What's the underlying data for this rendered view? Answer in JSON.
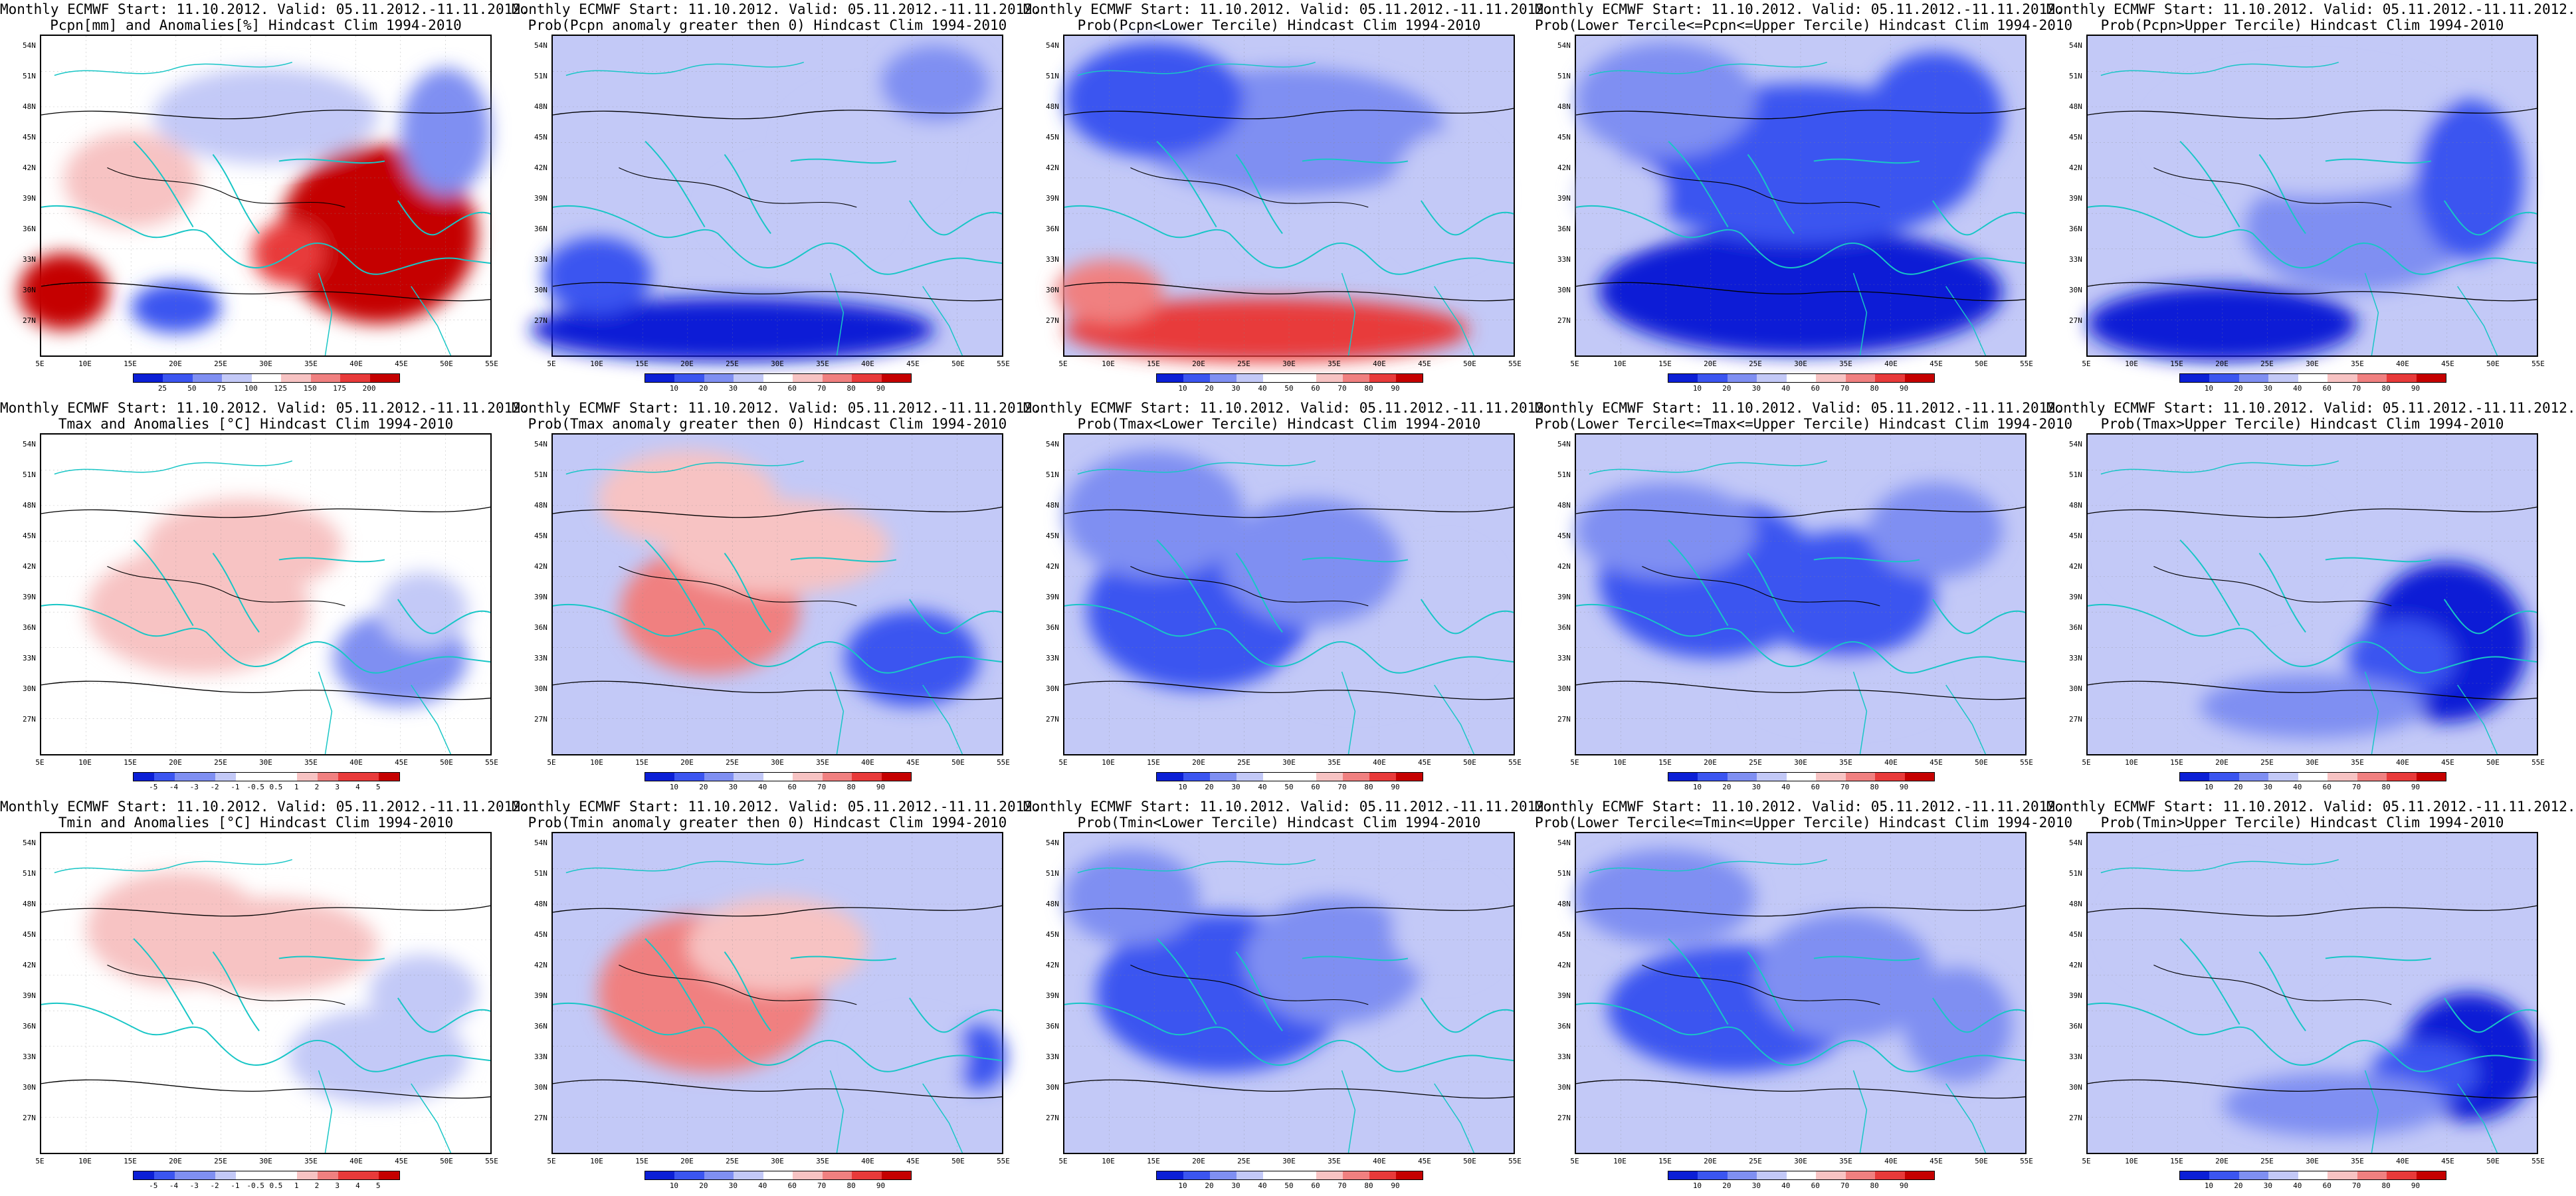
{
  "colors": {
    "deep_blue": "#0b1fd6",
    "blue": "#3b55f0",
    "mid_blue": "#7f8ff2",
    "light_blue": "#c3c9f7",
    "white": "#ffffff",
    "light_red": "#f7c3c3",
    "red": "#f08080",
    "strong_red": "#e83a3a",
    "deep_red": "#c50000",
    "coast": "#18c6c6",
    "contour": "#000000"
  },
  "axes": {
    "lat_labels": [
      "54N",
      "51N",
      "48N",
      "45N",
      "42N",
      "39N",
      "36N",
      "33N",
      "30N",
      "27N"
    ],
    "lon_labels": [
      "5E",
      "10E",
      "15E",
      "20E",
      "25E",
      "30E",
      "35E",
      "40E",
      "45E",
      "50E",
      "55E"
    ]
  },
  "rows": [
    {
      "panels": [
        {
          "title1": "Monthly ECMWF Start: 11.10.2012. Valid: 05.11.2012.-11.11.2012.",
          "title2": "Pcpn[mm] and Anomalies[%] Hindcast Clim 1994-2010",
          "colorbar_labels": [
            "25",
            "50",
            "75",
            "100",
            "125",
            "150",
            "175",
            "200"
          ],
          "field": "pcpn_anom"
        },
        {
          "title1": "Monthly ECMWF Start: 11.10.2012. Valid: 05.11.2012.-11.11.2012.",
          "title2": "Prob(Pcpn anomaly greater then 0) Hindcast Clim 1994-2010",
          "colorbar_labels": [
            "10",
            "20",
            "30",
            "40",
            "60",
            "70",
            "80",
            "90"
          ],
          "field": "pcpn_prob_pos"
        },
        {
          "title1": "Monthly ECMWF Start: 11.10.2012. Valid: 05.11.2012.-11.11.2012.",
          "title2": "Prob(Pcpn<Lower Tercile) Hindcast Clim 1994-2010",
          "colorbar_labels": [
            "10",
            "20",
            "30",
            "40",
            "50",
            "60",
            "70",
            "80",
            "90"
          ],
          "field": "pcpn_lower"
        },
        {
          "title1": "Monthly ECMWF Start: 11.10.2012. Valid: 05.11.2012.-11.11.2012.",
          "title2": "Prob(Lower Tercile<=Pcpn<=Upper Tercile) Hindcast Clim 1994-2010",
          "colorbar_labels": [
            "10",
            "20",
            "30",
            "40",
            "60",
            "70",
            "80",
            "90"
          ],
          "field": "pcpn_middle"
        },
        {
          "title1": "Monthly ECMWF Start: 11.10.2012. Valid: 05.11.2012.-11.11.2012.",
          "title2": "Prob(Pcpn>Upper Tercile) Hindcast Clim 1994-2010",
          "colorbar_labels": [
            "10",
            "20",
            "30",
            "40",
            "60",
            "70",
            "80",
            "90"
          ],
          "field": "pcpn_upper"
        }
      ]
    },
    {
      "panels": [
        {
          "title1": "Monthly ECMWF Start: 11.10.2012. Valid: 05.11.2012.-11.11.2012.",
          "title2": "Tmax and Anomalies [°C] Hindcast Clim 1994-2010",
          "colorbar_labels": [
            "-5",
            "-4",
            "-3",
            "-2",
            "-1",
            "-0.5",
            "0.5",
            "1",
            "2",
            "3",
            "4",
            "5"
          ],
          "field": "tmax_anom"
        },
        {
          "title1": "Monthly ECMWF Start: 11.10.2012. Valid: 05.11.2012.-11.11.2012.",
          "title2": "Prob(Tmax anomaly greater then 0) Hindcast Clim 1994-2010",
          "colorbar_labels": [
            "10",
            "20",
            "30",
            "40",
            "60",
            "70",
            "80",
            "90"
          ],
          "field": "tmax_prob_pos"
        },
        {
          "title1": "Monthly ECMWF Start: 11.10.2012. Valid: 05.11.2012.-11.11.2012.",
          "title2": "Prob(Tmax<Lower Tercile) Hindcast Clim 1994-2010",
          "colorbar_labels": [
            "10",
            "20",
            "30",
            "40",
            "50",
            "60",
            "70",
            "80",
            "90"
          ],
          "field": "tmax_lower"
        },
        {
          "title1": "Monthly ECMWF Start: 11.10.2012. Valid: 05.11.2012.-11.11.2012.",
          "title2": "Prob(Lower Tercile<=Tmax<=Upper Tercile) Hindcast Clim 1994-2010",
          "colorbar_labels": [
            "10",
            "20",
            "30",
            "40",
            "60",
            "70",
            "80",
            "90"
          ],
          "field": "tmax_middle"
        },
        {
          "title1": "Monthly ECMWF Start: 11.10.2012. Valid: 05.11.2012.-11.11.2012.",
          "title2": "Prob(Tmax>Upper Tercile) Hindcast Clim 1994-2010",
          "colorbar_labels": [
            "10",
            "20",
            "30",
            "40",
            "60",
            "70",
            "80",
            "90"
          ],
          "field": "tmax_upper"
        }
      ]
    },
    {
      "panels": [
        {
          "title1": "Monthly ECMWF Start: 11.10.2012. Valid: 05.11.2012.-11.11.2012.",
          "title2": "Tmin and Anomalies [°C] Hindcast Clim 1994-2010",
          "colorbar_labels": [
            "-5",
            "-4",
            "-3",
            "-2",
            "-1",
            "-0.5",
            "0.5",
            "1",
            "2",
            "3",
            "4",
            "5"
          ],
          "field": "tmin_anom"
        },
        {
          "title1": "Monthly ECMWF Start: 11.10.2012. Valid: 05.11.2012.-11.11.2012.",
          "title2": "Prob(Tmin anomaly greater then 0) Hindcast Clim 1994-2010",
          "colorbar_labels": [
            "10",
            "20",
            "30",
            "40",
            "60",
            "70",
            "80",
            "90"
          ],
          "field": "tmin_prob_pos"
        },
        {
          "title1": "Monthly ECMWF Start: 11.10.2012. Valid: 05.11.2012.-11.11.2012.",
          "title2": "Prob(Tmin<Lower Tercile) Hindcast Clim 1994-2010",
          "colorbar_labels": [
            "10",
            "20",
            "30",
            "40",
            "50",
            "60",
            "70",
            "80",
            "90"
          ],
          "field": "tmin_lower"
        },
        {
          "title1": "Monthly ECMWF Start: 11.10.2012. Valid: 05.11.2012.-11.11.2012.",
          "title2": "Prob(Lower Tercile<=Tmin<=Upper Tercile) Hindcast Clim 1994-2010",
          "colorbar_labels": [
            "10",
            "20",
            "30",
            "40",
            "60",
            "70",
            "80",
            "90"
          ],
          "field": "tmin_middle"
        },
        {
          "title1": "Monthly ECMWF Start: 11.10.2012. Valid: 05.11.2012.-11.11.2012.",
          "title2": "Prob(Tmin>Upper Tercile) Hindcast Clim 1994-2010",
          "colorbar_labels": [
            "10",
            "20",
            "30",
            "40",
            "60",
            "70",
            "80",
            "90"
          ],
          "field": "tmin_upper"
        }
      ]
    }
  ]
}
